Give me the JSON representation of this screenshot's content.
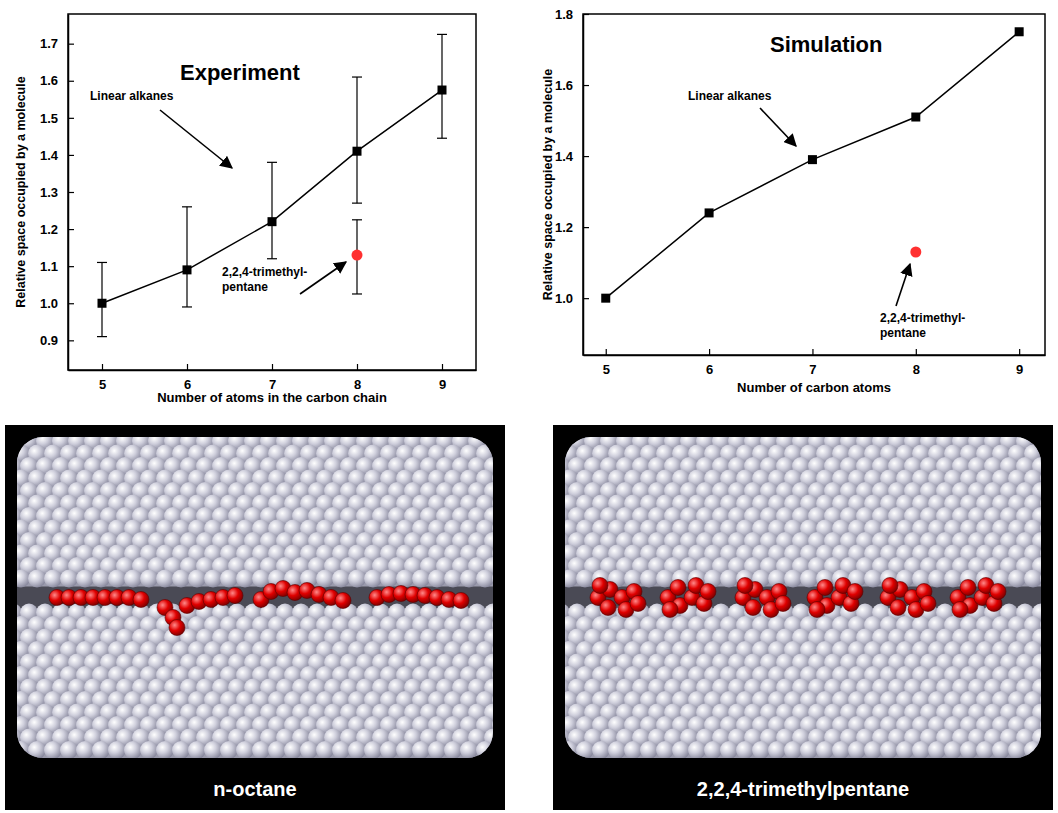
{
  "chart_data": [
    {
      "type": "line",
      "title": "Experiment",
      "x_label": "Number of atoms in the carbon chain",
      "y_label": "Relative space occupied by a molecule",
      "x": [
        5,
        6,
        7,
        8,
        9
      ],
      "xlim": [
        4.6,
        9.4
      ],
      "xticks": [
        5,
        6,
        7,
        8,
        9
      ],
      "ylim": [
        0.82,
        1.78
      ],
      "yticks": [
        0.9,
        {
          "value": 1,
          "label": "1.0"
        },
        1.1,
        1.2,
        1.3,
        1.4,
        1.5,
        1.6,
        1.7
      ],
      "series": [
        {
          "name": "Linear alkanes",
          "color": "#000000",
          "marker": "square",
          "line_style": "solid",
          "values": [
            1.0,
            1.09,
            1.22,
            1.41,
            1.575
          ],
          "errors_minus": [
            0.09,
            0.1,
            0.1,
            0.14,
            0.13
          ],
          "errors_plus": [
            0.11,
            0.17,
            0.16,
            0.2,
            0.15
          ]
        },
        {
          "name": "2,2,4-trimethyl-pentane",
          "color": "#ff3030",
          "marker": "circle",
          "line_style": "none",
          "values": [
            null,
            null,
            null,
            1.13,
            null
          ],
          "errors_minus": [
            null,
            null,
            null,
            0.105,
            null
          ],
          "errors_plus": [
            null,
            null,
            null,
            0.095,
            null
          ]
        }
      ]
    },
    {
      "type": "line",
      "title": "Simulation",
      "x_label": "Number of carbon atoms",
      "y_label": "Relative space occupied by a molecule",
      "x": [
        5,
        6,
        7,
        8,
        9
      ],
      "xlim": [
        4.78,
        9.25
      ],
      "xticks": [
        5,
        6,
        7,
        8,
        9
      ],
      "ylim": [
        0.84,
        1.8
      ],
      "yticks": [
        {
          "value": 1,
          "label": "1.0"
        },
        1.2,
        1.4,
        1.6,
        1.8
      ],
      "series": [
        {
          "name": "Linear alkanes",
          "color": "#000000",
          "marker": "square",
          "line_style": "solid",
          "values": [
            1.0,
            1.24,
            1.39,
            1.51,
            1.75
          ]
        },
        {
          "name": "2,2,4-trimethyl-pentane",
          "color": "#ff3030",
          "marker": "circle",
          "line_style": "none",
          "values": [
            null,
            null,
            null,
            1.13,
            null
          ]
        }
      ]
    }
  ],
  "images": [
    {
      "caption": "n-octane"
    },
    {
      "caption": "2,2,4-trimethylpentane"
    }
  ]
}
